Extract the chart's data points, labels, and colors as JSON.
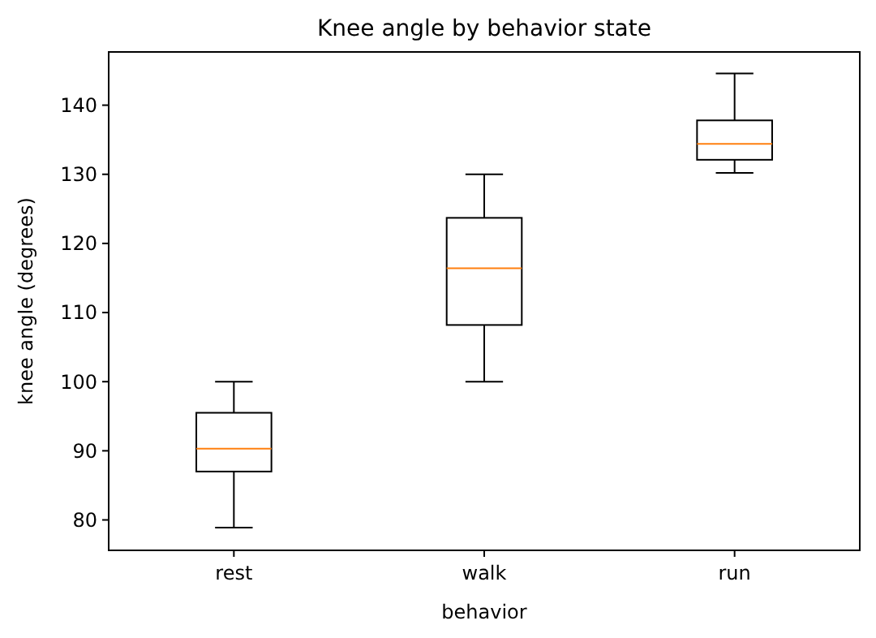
{
  "chart_data": {
    "type": "box",
    "title": "Knee angle by behavior state",
    "xlabel": "behavior",
    "ylabel": "knee angle (degrees)",
    "categories": [
      "rest",
      "walk",
      "run"
    ],
    "boxes": [
      {
        "low": 78.9,
        "q1": 87.0,
        "median": 90.3,
        "q3": 95.5,
        "high": 100
      },
      {
        "low": 100,
        "q1": 108.2,
        "median": 116.4,
        "q3": 123.7,
        "high": 130
      },
      {
        "low": 130.2,
        "q1": 132.1,
        "median": 134.4,
        "q3": 137.8,
        "high": 144.6
      }
    ],
    "color": "#000000",
    "ylim": [
      75.6,
      147.7
    ],
    "yticks": [
      80,
      90,
      100,
      110,
      120,
      130,
      140
    ]
  }
}
